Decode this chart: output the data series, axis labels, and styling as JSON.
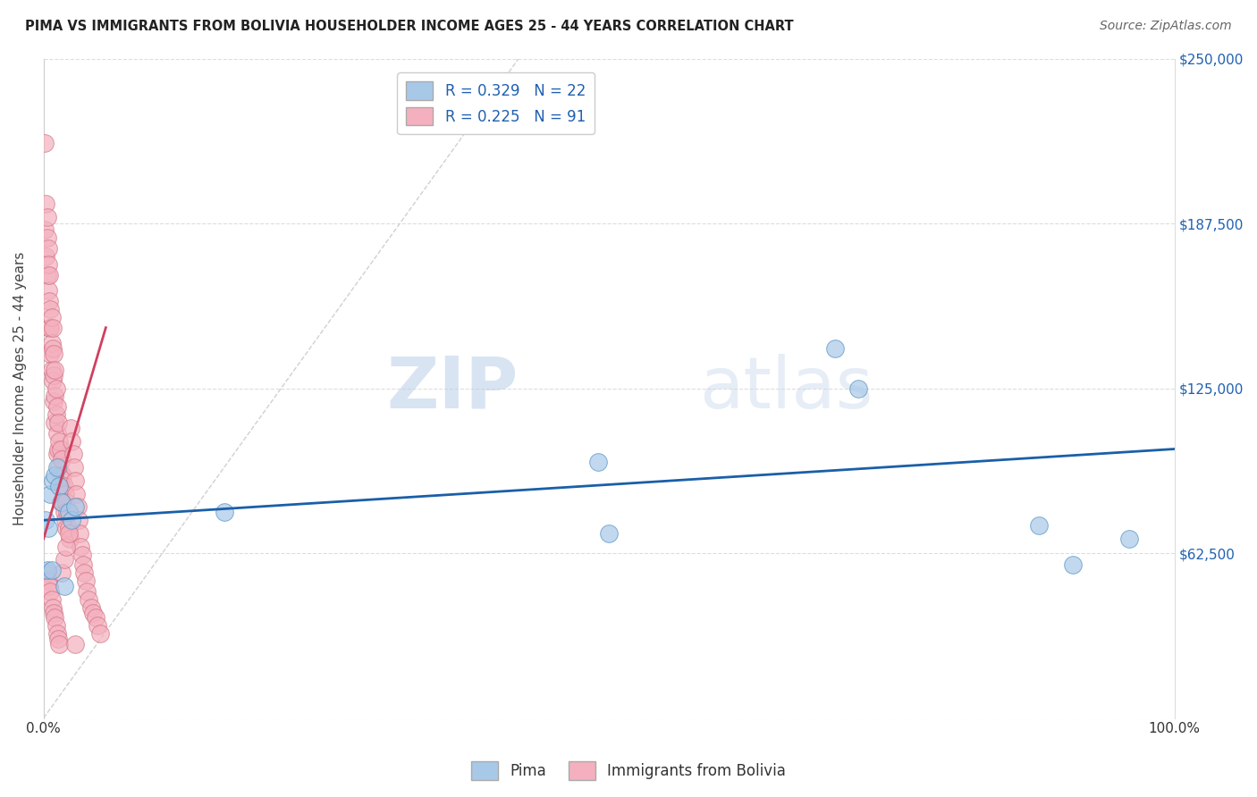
{
  "title": "PIMA VS IMMIGRANTS FROM BOLIVIA HOUSEHOLDER INCOME AGES 25 - 44 YEARS CORRELATION CHART",
  "source": "Source: ZipAtlas.com",
  "ylabel": "Householder Income Ages 25 - 44 years",
  "ytick_values": [
    0,
    62500,
    125000,
    187500,
    250000
  ],
  "ytick_right_labels": [
    "$250,000",
    "$187,500",
    "$125,000",
    "$62,500",
    ""
  ],
  "xlim": [
    0,
    1.0
  ],
  "ylim": [
    0,
    250000
  ],
  "pima_color": "#a8c8e8",
  "bolivia_color": "#f4b0be",
  "pima_edge": "#5090c0",
  "bolivia_edge": "#d07080",
  "trend_blue": "#1a5fa8",
  "trend_pink": "#d04060",
  "ref_line_color": "#d0d0d0",
  "watermark_zip": "ZIP",
  "watermark_atlas": "atlas",
  "blue_trend_x": [
    0.0,
    1.0
  ],
  "blue_trend_y": [
    75000,
    102000
  ],
  "pink_trend_x": [
    0.0,
    0.055
  ],
  "pink_trend_y": [
    68000,
    148000
  ],
  "ref_line_x": [
    0.0,
    0.42
  ],
  "ref_line_y": [
    0,
    250000
  ],
  "pima_scatter_x": [
    0.002,
    0.004,
    0.006,
    0.008,
    0.01,
    0.012,
    0.014,
    0.016,
    0.022,
    0.025,
    0.028,
    0.16,
    0.5,
    0.49,
    0.7,
    0.72,
    0.88,
    0.91,
    0.96,
    0.003,
    0.007,
    0.018
  ],
  "pima_scatter_y": [
    75000,
    72000,
    85000,
    90000,
    92000,
    95000,
    88000,
    82000,
    78000,
    75000,
    80000,
    78000,
    70000,
    97000,
    140000,
    125000,
    73000,
    58000,
    68000,
    56000,
    56000,
    50000
  ],
  "bolivia_scatter_x": [
    0.001,
    0.001,
    0.002,
    0.002,
    0.003,
    0.003,
    0.003,
    0.004,
    0.004,
    0.004,
    0.005,
    0.005,
    0.005,
    0.006,
    0.006,
    0.006,
    0.007,
    0.007,
    0.007,
    0.008,
    0.008,
    0.008,
    0.009,
    0.009,
    0.009,
    0.01,
    0.01,
    0.01,
    0.011,
    0.011,
    0.012,
    0.012,
    0.012,
    0.013,
    0.013,
    0.014,
    0.014,
    0.015,
    0.015,
    0.015,
    0.016,
    0.016,
    0.017,
    0.017,
    0.018,
    0.018,
    0.019,
    0.019,
    0.02,
    0.02,
    0.021,
    0.022,
    0.023,
    0.024,
    0.025,
    0.026,
    0.027,
    0.028,
    0.029,
    0.03,
    0.031,
    0.032,
    0.033,
    0.034,
    0.035,
    0.036,
    0.037,
    0.038,
    0.04,
    0.042,
    0.044,
    0.046,
    0.048,
    0.05,
    0.003,
    0.004,
    0.005,
    0.006,
    0.007,
    0.008,
    0.009,
    0.01,
    0.011,
    0.012,
    0.013,
    0.014,
    0.016,
    0.018,
    0.02,
    0.022,
    0.028
  ],
  "bolivia_scatter_y": [
    218000,
    185000,
    195000,
    175000,
    190000,
    182000,
    168000,
    178000,
    172000,
    162000,
    168000,
    158000,
    148000,
    155000,
    148000,
    138000,
    152000,
    142000,
    132000,
    148000,
    140000,
    128000,
    138000,
    130000,
    120000,
    132000,
    122000,
    112000,
    125000,
    115000,
    118000,
    108000,
    100000,
    112000,
    102000,
    105000,
    95000,
    102000,
    92000,
    82000,
    98000,
    88000,
    92000,
    82000,
    88000,
    78000,
    85000,
    75000,
    82000,
    72000,
    78000,
    72000,
    68000,
    110000,
    105000,
    100000,
    95000,
    90000,
    85000,
    80000,
    75000,
    70000,
    65000,
    62000,
    58000,
    55000,
    52000,
    48000,
    45000,
    42000,
    40000,
    38000,
    35000,
    32000,
    55000,
    52000,
    50000,
    48000,
    45000,
    42000,
    40000,
    38000,
    35000,
    32000,
    30000,
    28000,
    55000,
    60000,
    65000,
    70000,
    28000
  ]
}
